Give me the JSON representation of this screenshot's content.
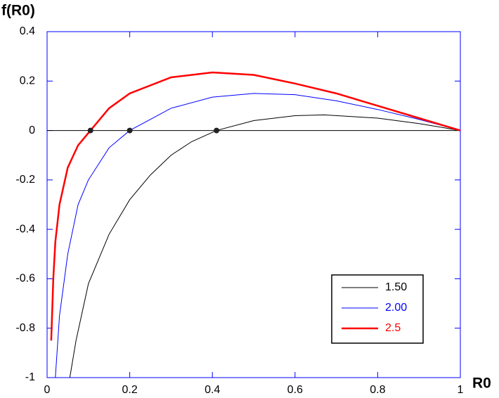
{
  "chart_data": {
    "type": "line",
    "xlabel": "R0",
    "ylabel": "f(R0)",
    "xlim": [
      0,
      1
    ],
    "ylim": [
      -1,
      0.4
    ],
    "xticks": [
      0,
      0.2,
      0.4,
      0.6,
      0.8,
      1
    ],
    "yticks": [
      0.4,
      0.2,
      0,
      -0.2,
      -0.4,
      -0.6,
      -0.8,
      -1
    ],
    "hline": 0,
    "legend": "lower right",
    "series": [
      {
        "name": "1.50",
        "color": "#000000",
        "width": 1,
        "x": [
          0.055,
          0.07,
          0.1,
          0.15,
          0.2,
          0.25,
          0.3,
          0.35,
          0.41,
          0.5,
          0.6,
          0.67,
          0.8,
          0.9,
          1
        ],
        "values": [
          -1,
          -0.85,
          -0.62,
          -0.42,
          -0.28,
          -0.18,
          -0.1,
          -0.045,
          0,
          0.04,
          0.06,
          0.063,
          0.05,
          0.028,
          0
        ]
      },
      {
        "name": "2.00",
        "color": "#0000ff",
        "width": 1,
        "x": [
          0.02,
          0.03,
          0.05,
          0.075,
          0.1,
          0.15,
          0.2,
          0.3,
          0.4,
          0.5,
          0.6,
          0.7,
          0.8,
          0.9,
          1
        ],
        "values": [
          -1,
          -0.75,
          -0.5,
          -0.3,
          -0.2,
          -0.07,
          0,
          0.09,
          0.135,
          0.15,
          0.145,
          0.12,
          0.085,
          0.045,
          0
        ]
      },
      {
        "name": "2.5",
        "color": "#ff0000",
        "width": 2.5,
        "x": [
          0.01,
          0.015,
          0.02,
          0.03,
          0.05,
          0.075,
          0.105,
          0.15,
          0.2,
          0.3,
          0.4,
          0.5,
          0.6,
          0.7,
          0.8,
          0.9,
          1
        ],
        "values": [
          -0.85,
          -0.6,
          -0.45,
          -0.3,
          -0.15,
          -0.06,
          0,
          0.09,
          0.15,
          0.215,
          0.235,
          0.225,
          0.19,
          0.15,
          0.1,
          0.05,
          0
        ]
      }
    ],
    "points": {
      "color": "#222222",
      "x": [
        0.105,
        0.2,
        0.41
      ],
      "values": [
        0,
        0,
        0
      ]
    }
  }
}
